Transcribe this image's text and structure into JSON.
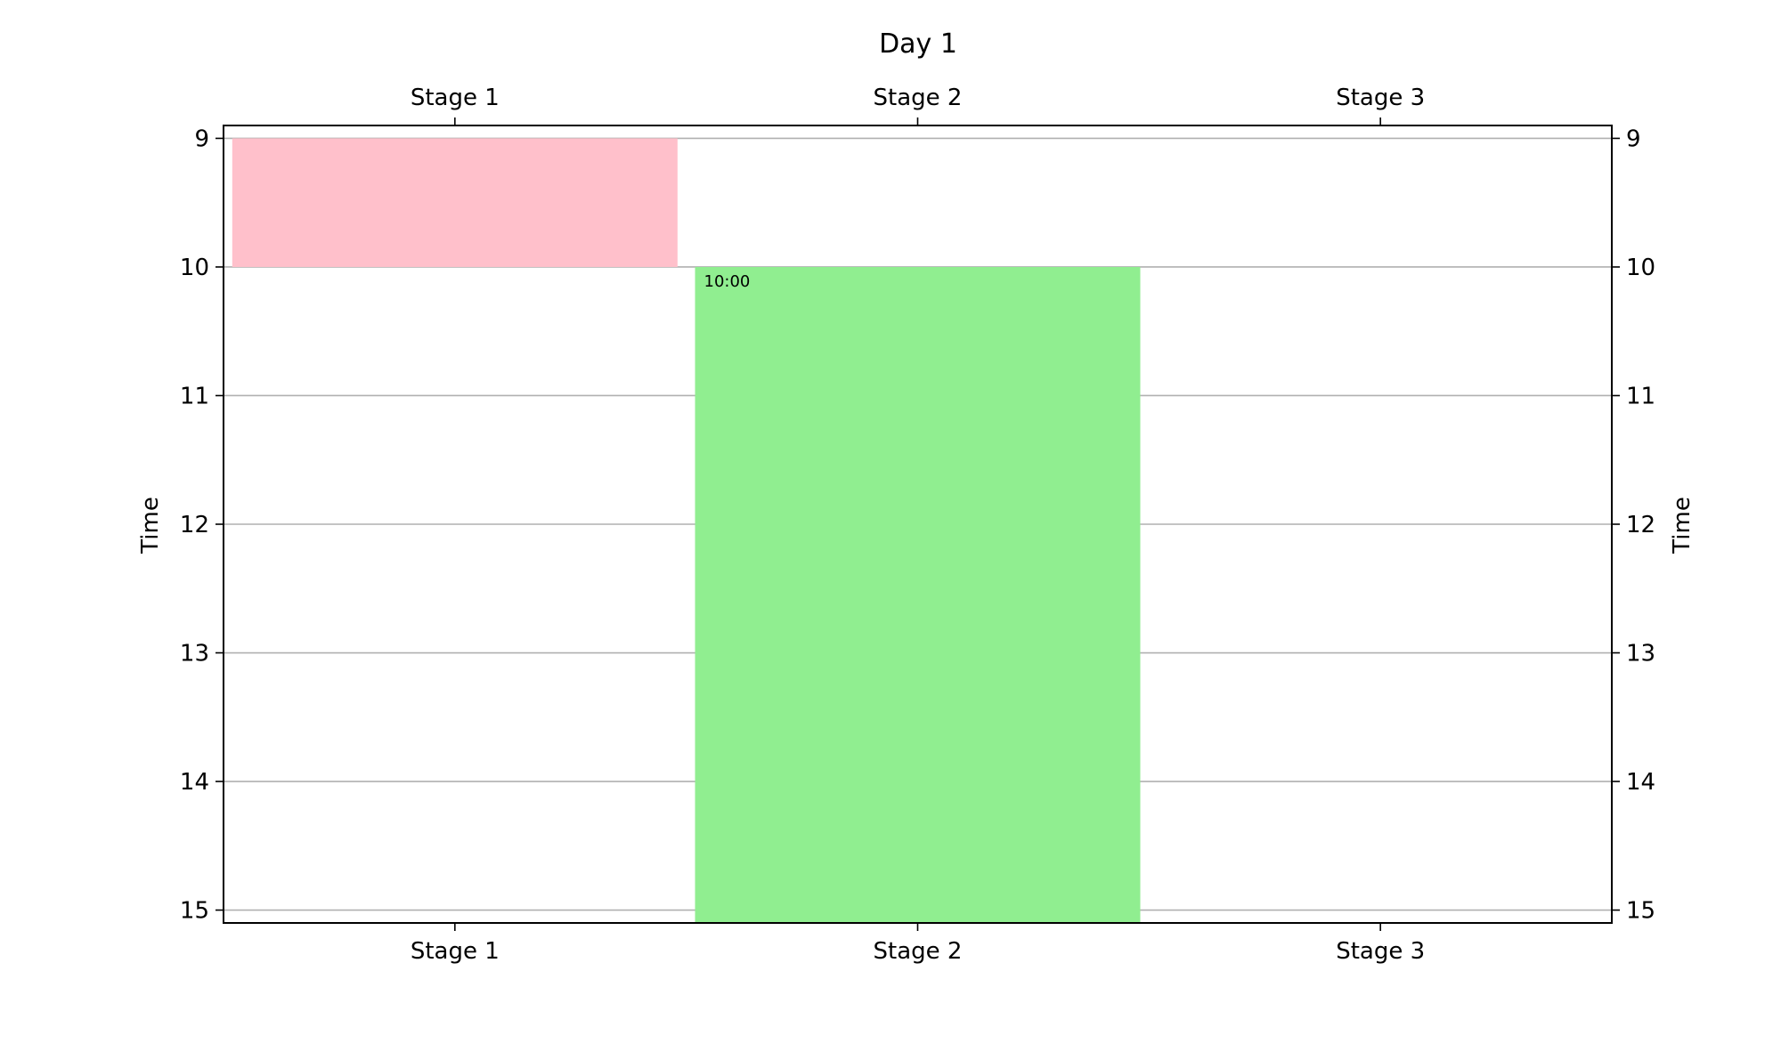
{
  "chart_data": {
    "type": "bar",
    "title": "Day 1",
    "ylabel": "Time",
    "categories": [
      "Stage 1",
      "Stage 2",
      "Stage 3"
    ],
    "y_ticks": [
      9,
      10,
      11,
      12,
      13,
      14,
      15
    ],
    "ylim": [
      8.9,
      15.1
    ],
    "y_inverted": true,
    "grid": "horizontal",
    "events": [
      {
        "stage": "Stage 1",
        "start": 9,
        "end": 10,
        "color": "#ffc0cb",
        "label": ""
      },
      {
        "stage": "Stage 2",
        "start": 10,
        "end": 15.1,
        "color": "#90ee90",
        "label": "10:00"
      }
    ]
  }
}
